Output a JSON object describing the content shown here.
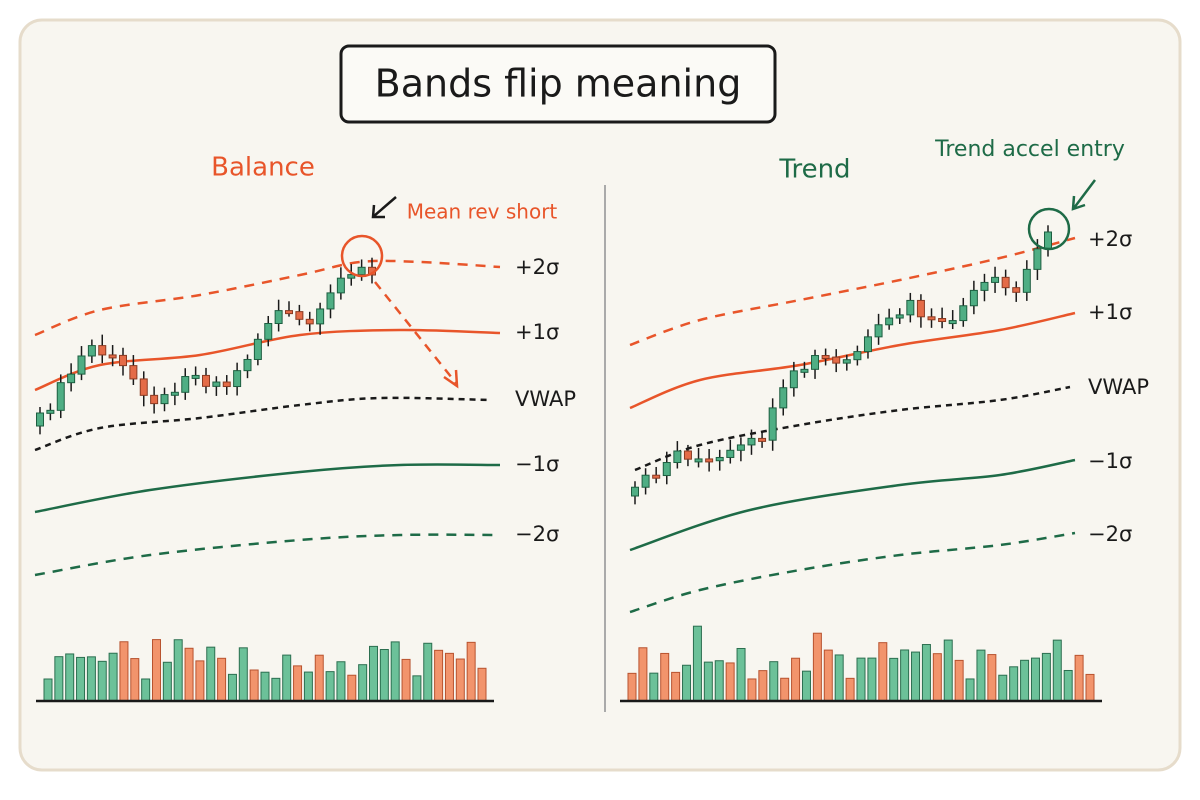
{
  "title": "Bands flip meaning",
  "panels": [
    {
      "label": "Balance",
      "annotation": "Mean rev short",
      "bands": [
        "+2σ",
        "+1σ",
        "VWAP",
        "−1σ",
        "−2σ"
      ]
    },
    {
      "label": "Trend",
      "annotation": "Trend accel entry",
      "bands": [
        "+2σ",
        "+1σ",
        "VWAP",
        "−1σ",
        "−2σ"
      ]
    }
  ]
}
